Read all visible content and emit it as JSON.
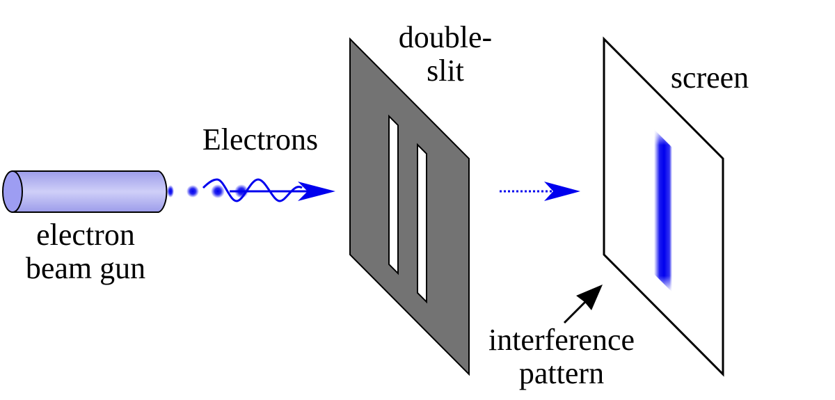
{
  "labels": {
    "gun_line1": "electron",
    "gun_line2": "beam gun",
    "electrons": "Electrons",
    "slit_line1": "double-",
    "slit_line2": "slit",
    "screen": "screen",
    "pattern_line1": "interference",
    "pattern_line2": "pattern"
  },
  "colors": {
    "gun_body": "#b3b3f0",
    "gun_face": "#9d9df2",
    "electron_blue": "#0000ee",
    "slit_plate": "#737373",
    "outline": "#000000",
    "screen_fill": "#ffffff"
  }
}
